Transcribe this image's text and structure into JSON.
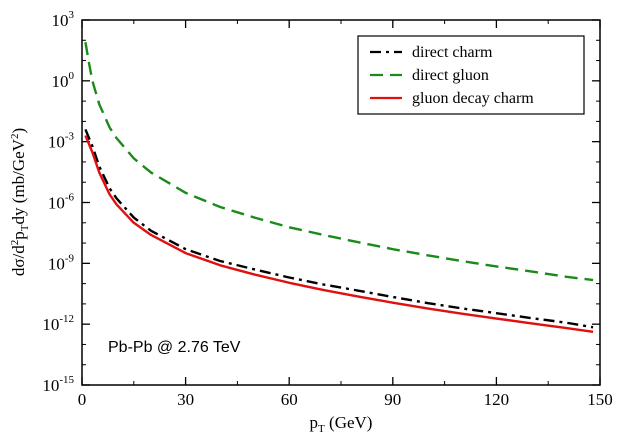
{
  "chart_data": {
    "type": "line",
    "xlabel": {
      "base": "p",
      "sub": "T",
      "rest": " (GeV)"
    },
    "ylabel": {
      "a": "dσ/d",
      "b": "2",
      "c": "p",
      "d": "T",
      "e": "dy (mb/GeV",
      "f": "2",
      "g": ")"
    },
    "xlim": [
      0,
      150
    ],
    "ylim": [
      1e-15,
      1000
    ],
    "yscale": "log",
    "grid": false,
    "legend_position": "top-right",
    "x_ticks": [
      "0",
      "30",
      "60",
      "90",
      "120",
      "150"
    ],
    "y_ticks": [
      {
        "base": "10",
        "exp": "-15"
      },
      {
        "base": "10",
        "exp": "-12"
      },
      {
        "base": "10",
        "exp": "-9"
      },
      {
        "base": "10",
        "exp": "-6"
      },
      {
        "base": "10",
        "exp": "-3"
      },
      {
        "base": "10",
        "exp": "0"
      },
      {
        "base": "10",
        "exp": "3"
      }
    ],
    "annotation": "Pb-Pb @ 2.76 TeV",
    "series": [
      {
        "name": "direct charm",
        "color": "#000000",
        "style": "dash-dot",
        "x": [
          1,
          3,
          5,
          8,
          10,
          15,
          20,
          30,
          40,
          50,
          60,
          70,
          80,
          90,
          100,
          110,
          120,
          130,
          140,
          148
        ],
        "y": [
          0.004,
          0.0006,
          6e-05,
          5e-06,
          1.6e-06,
          1.8e-07,
          4e-08,
          5e-09,
          1.3e-09,
          5e-10,
          2e-10,
          9e-11,
          4.5e-11,
          2.2e-11,
          1.1e-11,
          6e-12,
          3.5e-12,
          2e-12,
          1.2e-12,
          7e-13
        ]
      },
      {
        "name": "direct gluon",
        "color": "#1a8a1a",
        "style": "dashed",
        "x": [
          1,
          2,
          3,
          5,
          8,
          10,
          15,
          20,
          30,
          40,
          50,
          60,
          70,
          80,
          90,
          100,
          110,
          120,
          130,
          140,
          148
        ],
        "y": [
          80,
          8,
          1,
          0.07,
          0.005,
          0.0015,
          0.00015,
          3e-05,
          3e-06,
          6e-07,
          1.8e-07,
          6e-08,
          2.5e-08,
          1.1e-08,
          5e-09,
          2.5e-09,
          1.3e-09,
          7e-10,
          4e-10,
          2.2e-10,
          1.5e-10
        ]
      },
      {
        "name": "gluon decay charm",
        "color": "#e01010",
        "style": "solid",
        "x": [
          1,
          3,
          5,
          8,
          10,
          15,
          20,
          30,
          40,
          50,
          60,
          70,
          80,
          90,
          100,
          110,
          120,
          130,
          140,
          148
        ],
        "y": [
          0.002,
          0.0003,
          3e-05,
          2.5e-06,
          8e-07,
          1e-07,
          2.5e-08,
          3.2e-09,
          8e-10,
          2.8e-10,
          1.1e-10,
          4.8e-11,
          2.3e-11,
          1.15e-11,
          6e-12,
          3.3e-12,
          1.9e-12,
          1.1e-12,
          6.5e-13,
          4.2e-13
        ]
      }
    ]
  }
}
